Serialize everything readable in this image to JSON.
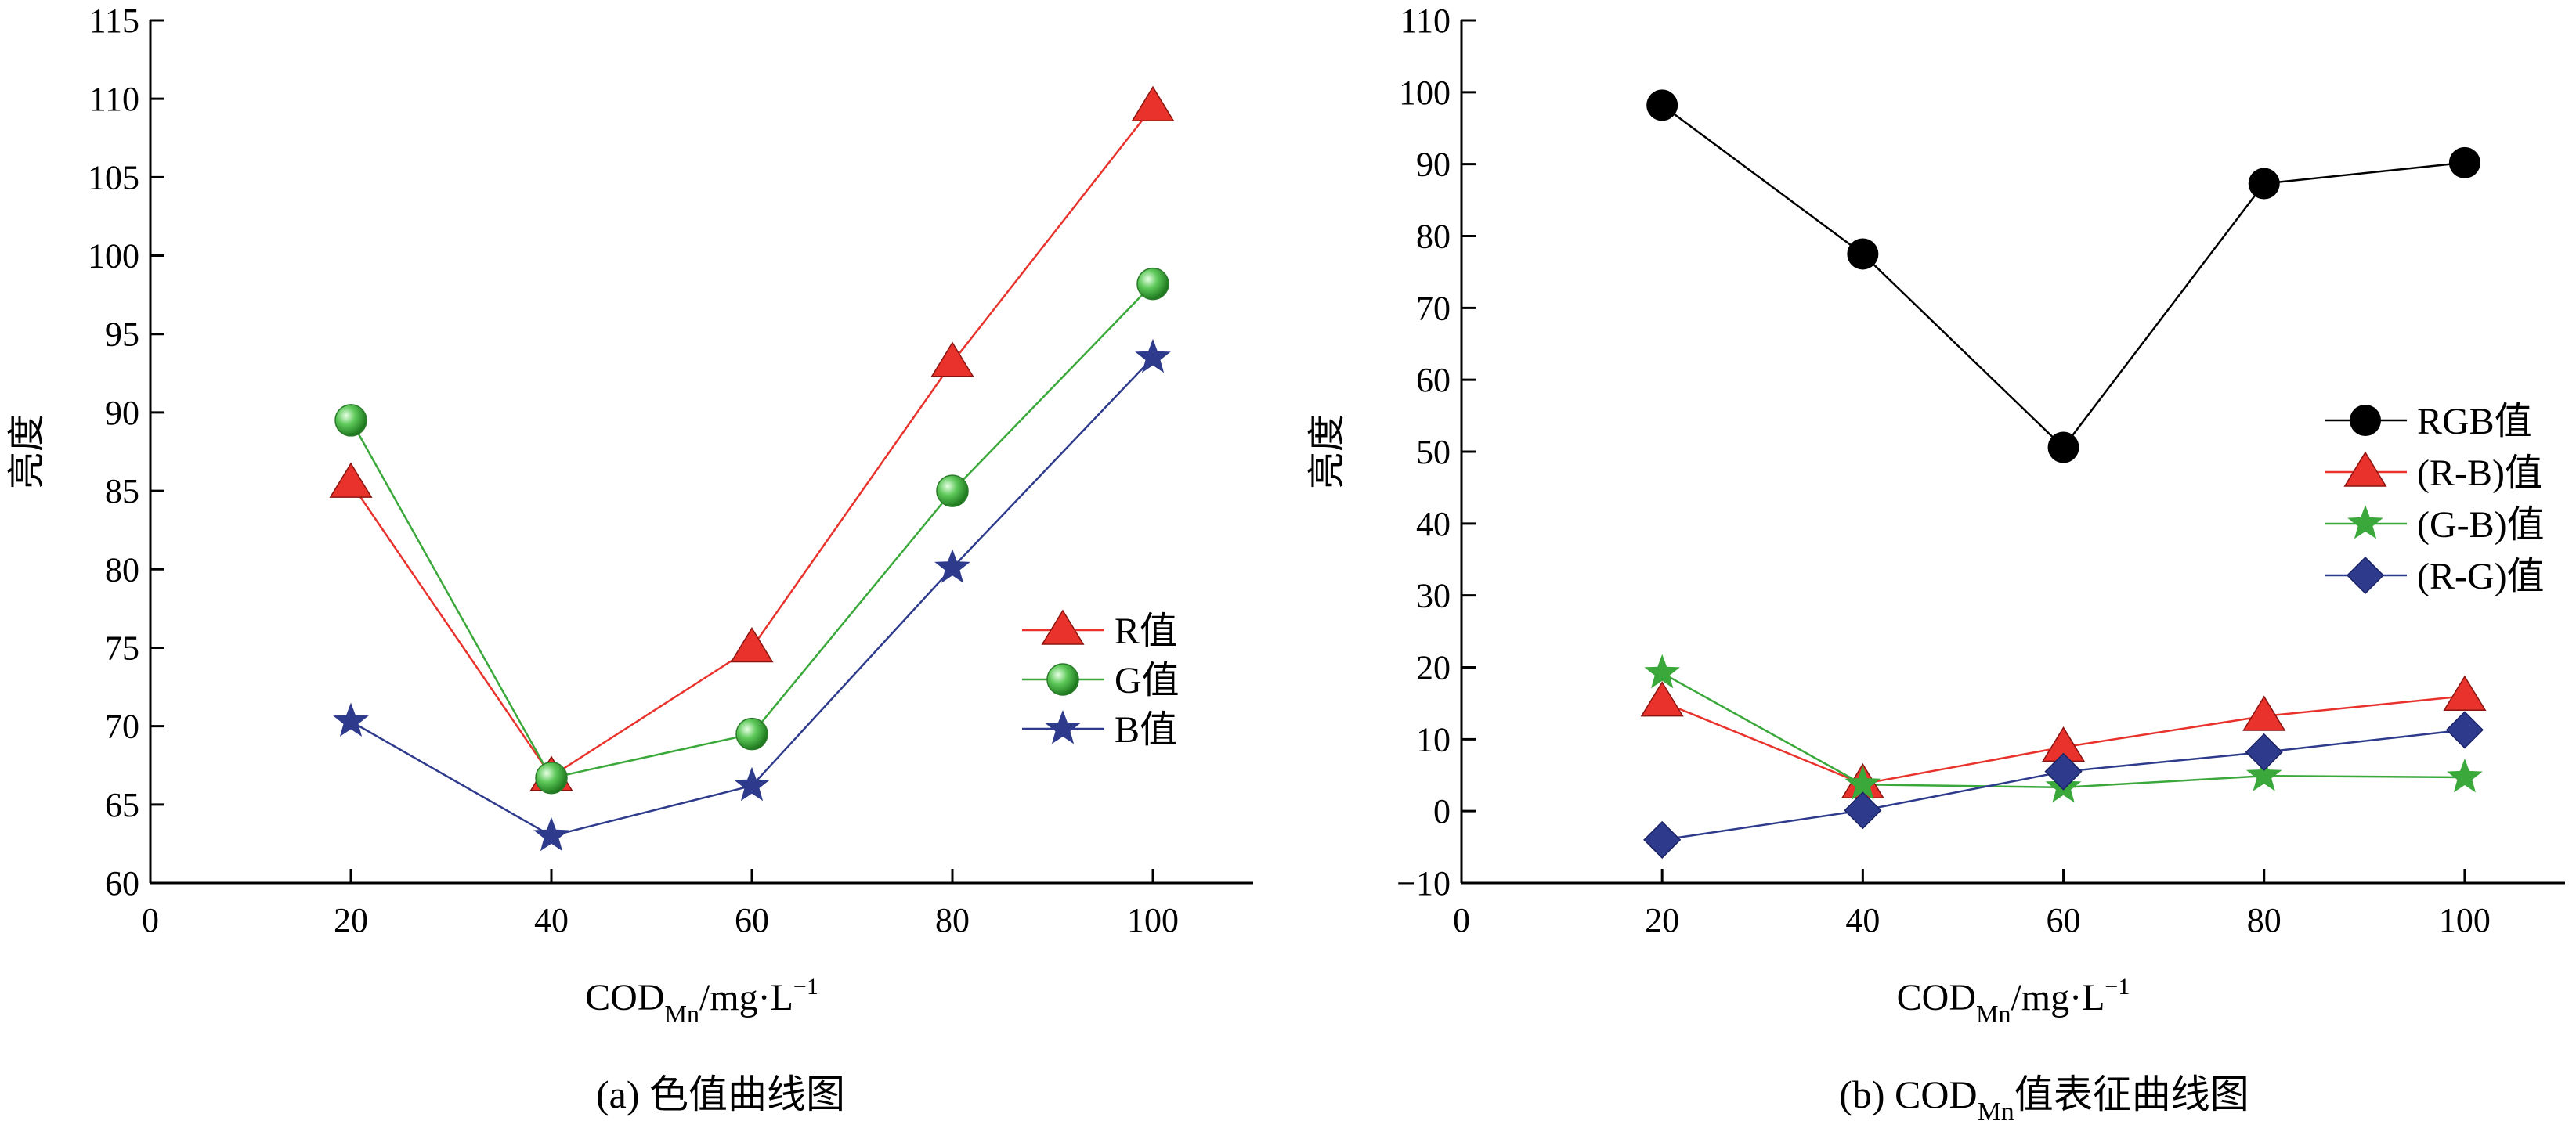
{
  "chart_data": [
    {
      "type": "line",
      "caption": "(a) 色值曲线图",
      "xlabel": {
        "main": "COD",
        "sub": "Mn",
        "rest": "/mg·L",
        "sup": "−1"
      },
      "ylabel": "亮度",
      "xlim": [
        0,
        110
      ],
      "ylim": [
        60,
        115
      ],
      "xticks": [
        0,
        20,
        40,
        60,
        80,
        100
      ],
      "yticks": [
        60,
        65,
        70,
        75,
        80,
        85,
        90,
        95,
        100,
        105,
        110,
        115
      ],
      "x": [
        20,
        40,
        60,
        80,
        100
      ],
      "legend_position": "right-middle",
      "series": [
        {
          "name": "R值",
          "values": [
            85.5,
            66.8,
            75.0,
            93.2,
            109.5
          ],
          "color": "#e8322b",
          "marker": "triangle"
        },
        {
          "name": "G值",
          "values": [
            89.5,
            66.7,
            69.5,
            85.0,
            98.2
          ],
          "color": "#3aa83a",
          "marker": "sphere"
        },
        {
          "name": "B值",
          "values": [
            70.3,
            63.0,
            66.2,
            80.1,
            93.5
          ],
          "color": "#2e3a8c",
          "marker": "star"
        }
      ]
    },
    {
      "type": "line",
      "caption": {
        "prefix": "(b) COD",
        "sub": "Mn",
        "suffix": "值表征曲线图"
      },
      "xlabel": {
        "main": "COD",
        "sub": "Mn",
        "rest": "/mg·L",
        "sup": "−1"
      },
      "ylabel": "亮度",
      "xlim": [
        0,
        110
      ],
      "ylim": [
        -10,
        110
      ],
      "xticks": [
        0,
        20,
        40,
        60,
        80,
        100
      ],
      "yticks": [
        -10,
        0,
        10,
        20,
        30,
        40,
        50,
        60,
        70,
        80,
        90,
        100,
        110
      ],
      "x": [
        20,
        40,
        60,
        80,
        100
      ],
      "legend_position": "right-middle",
      "series": [
        {
          "name": "RGB值",
          "values": [
            98.2,
            77.5,
            50.6,
            87.3,
            90.2
          ],
          "color": "#000000",
          "marker": "circle"
        },
        {
          "name": "(R-B)值",
          "values": [
            15.2,
            3.8,
            8.9,
            13.2,
            16.0
          ],
          "color": "#e8322b",
          "marker": "triangle"
        },
        {
          "name": "(G-B)值",
          "values": [
            19.2,
            3.7,
            3.3,
            4.9,
            4.7
          ],
          "color": "#3aa83a",
          "marker": "star"
        },
        {
          "name": "(R-G)值",
          "values": [
            -4.0,
            0.1,
            5.5,
            8.2,
            11.3
          ],
          "color": "#2e3a8c",
          "marker": "diamond"
        }
      ]
    }
  ]
}
